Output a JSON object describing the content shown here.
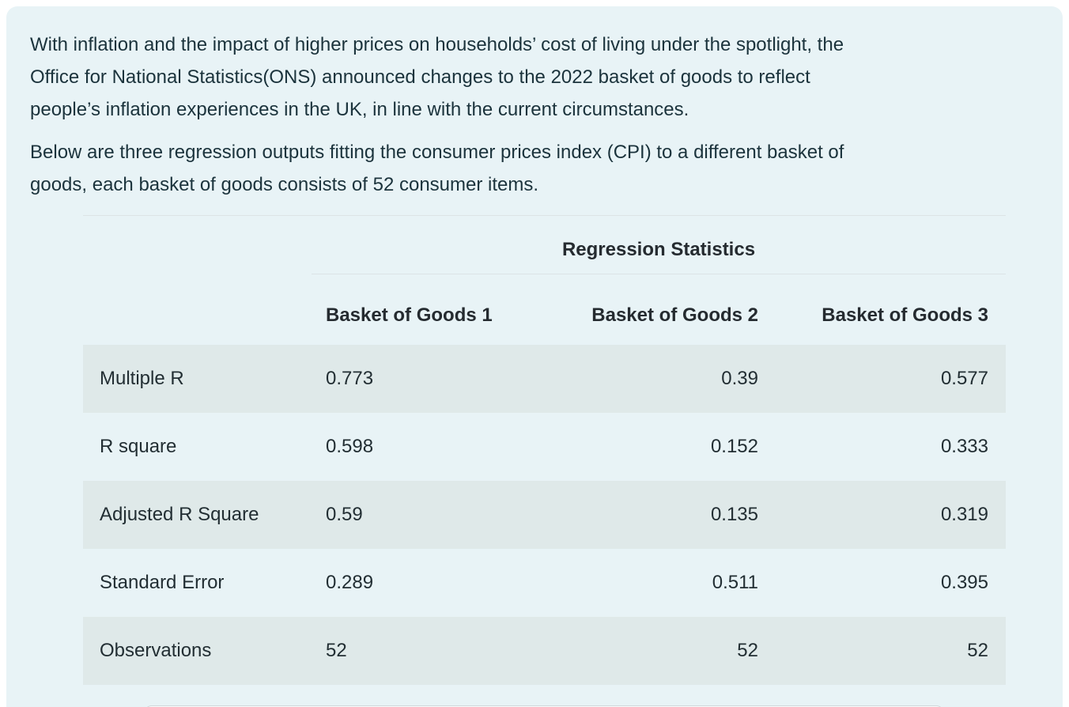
{
  "colors": {
    "page_background": "#ffffff",
    "panel_background": "#e8f3f6",
    "row_shade": "#dfe9e9",
    "divider": "#dce4e6",
    "text": "#1b333c"
  },
  "intro": {
    "paragraph1_lines": [
      "With inflation and the impact of higher prices on households’ cost of living under the spotlight, the",
      "Office for National Statistics(ONS) announced changes to the 2022 basket of goods to reflect",
      "people’s inflation experiences in the UK, in line with the current circumstances."
    ],
    "paragraph2_lines": [
      "Below are three regression outputs fitting the consumer prices index (CPI) to a different basket of",
      "goods, each basket of goods consists of 52 consumer items."
    ]
  },
  "table": {
    "title": "Regression Statistics",
    "column_headers": [
      "Basket of Goods 1",
      "Basket of Goods 2",
      "Basket of Goods 3"
    ],
    "rows": [
      {
        "label": "Multiple R",
        "values": [
          "0.773",
          "0.39",
          "0.577"
        ]
      },
      {
        "label": "R square",
        "values": [
          "0.598",
          "0.152",
          "0.333"
        ]
      },
      {
        "label": "Adjusted R Square",
        "values": [
          "0.59",
          "0.135",
          "0.319"
        ]
      },
      {
        "label": "Standard Error",
        "values": [
          "0.289",
          "0.511",
          "0.395"
        ]
      },
      {
        "label": "Observations",
        "values": [
          "52",
          "52",
          "52"
        ]
      }
    ]
  }
}
